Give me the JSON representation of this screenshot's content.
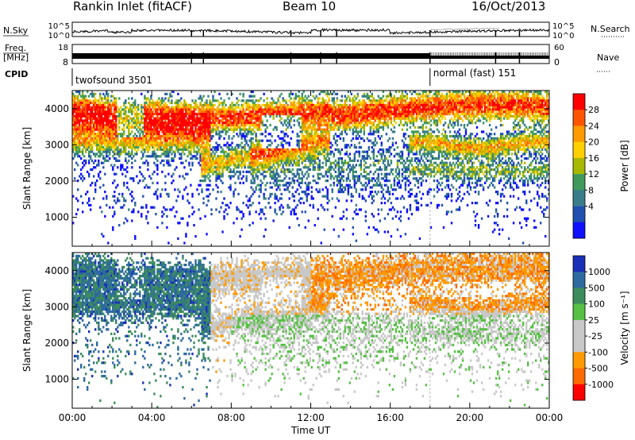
{
  "header": {
    "title": "Rankin Inlet (fitACF)",
    "beam": "Beam 10",
    "date": "16/Oct/2013"
  },
  "params": {
    "left_label": "N.Sky",
    "right_label": "N.Search",
    "left_ticks": [
      "10^5",
      "10^0"
    ],
    "right_ticks": [
      "10^5",
      "10^0"
    ],
    "freq_label_1": "Freq.",
    "freq_label_2": "[MHz]",
    "freq_ticks": [
      "18",
      "8"
    ],
    "nave_label": "Nave",
    "nave_ticks": [
      "60",
      "0"
    ],
    "cpid_label": "CPID",
    "cpid_modes": [
      {
        "name": "twofsound 3501",
        "start_hour": 0
      },
      {
        "name": "normal (fast) 151",
        "start_hour": 18
      }
    ]
  },
  "chart_data": [
    {
      "type": "heatmap",
      "name": "power",
      "ylabel": "Slant Range [km]",
      "xlabel": "",
      "xlim": [
        0,
        24
      ],
      "ylim": [
        200,
        4500
      ],
      "yticks": [
        "1000",
        "2000",
        "3000",
        "4000"
      ],
      "colorbar": {
        "label": "Power [dB]",
        "ticks": [
          "28",
          "24",
          "20",
          "16",
          "12",
          "8",
          "4"
        ],
        "colors": [
          "#ff0000",
          "#ff5500",
          "#ff9a00",
          "#ffd000",
          "#a8b800",
          "#3f9a5c",
          "#3a7d8a",
          "#2050b0",
          "#1010ff"
        ]
      }
    },
    {
      "type": "heatmap",
      "name": "velocity",
      "ylabel": "Slant Range [km]",
      "xlabel": "Time UT",
      "xlim": [
        0,
        24
      ],
      "ylim": [
        200,
        4500
      ],
      "yticks": [
        "1000",
        "2000",
        "3000",
        "4000"
      ],
      "xticks": [
        "00:00",
        "04:00",
        "08:00",
        "12:00",
        "16:00",
        "20:00",
        "00:00"
      ],
      "colorbar": {
        "label": "Velocity [m s⁻¹]",
        "ticks": [
          "1000",
          "500",
          "100",
          "25",
          "-25",
          "-100",
          "-500",
          "-1000"
        ],
        "colors": [
          "#1a2fb8",
          "#2d6aa0",
          "#3c8c5c",
          "#55c043",
          "#c8c8c8",
          "#c8c8c8",
          "#ff9a00",
          "#ff6a00",
          "#ff0000"
        ]
      }
    }
  ]
}
